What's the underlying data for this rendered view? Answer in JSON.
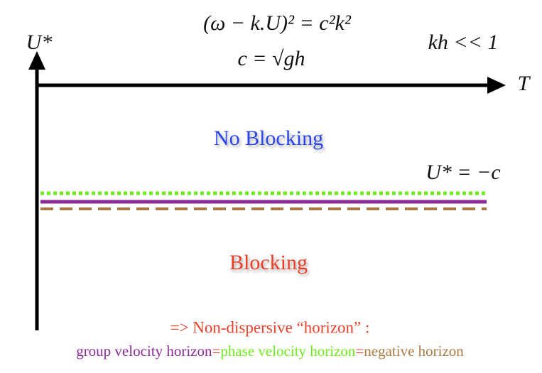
{
  "equations": {
    "dispersion": "(ω − k.U)² = c²k²",
    "speed": "c = √gh",
    "condition": "kh << 1"
  },
  "axes": {
    "y_label": "U*",
    "x_label": "T"
  },
  "regions": {
    "upper": "No Blocking",
    "lower": "Blocking"
  },
  "threshold_label": "U* = −c",
  "caption": {
    "line1": "=> Non-dispersive “horizon” :",
    "line2": [
      "group velocity horizon",
      "=",
      "phase velocity horizon",
      "=",
      "negative horizon"
    ]
  }
}
